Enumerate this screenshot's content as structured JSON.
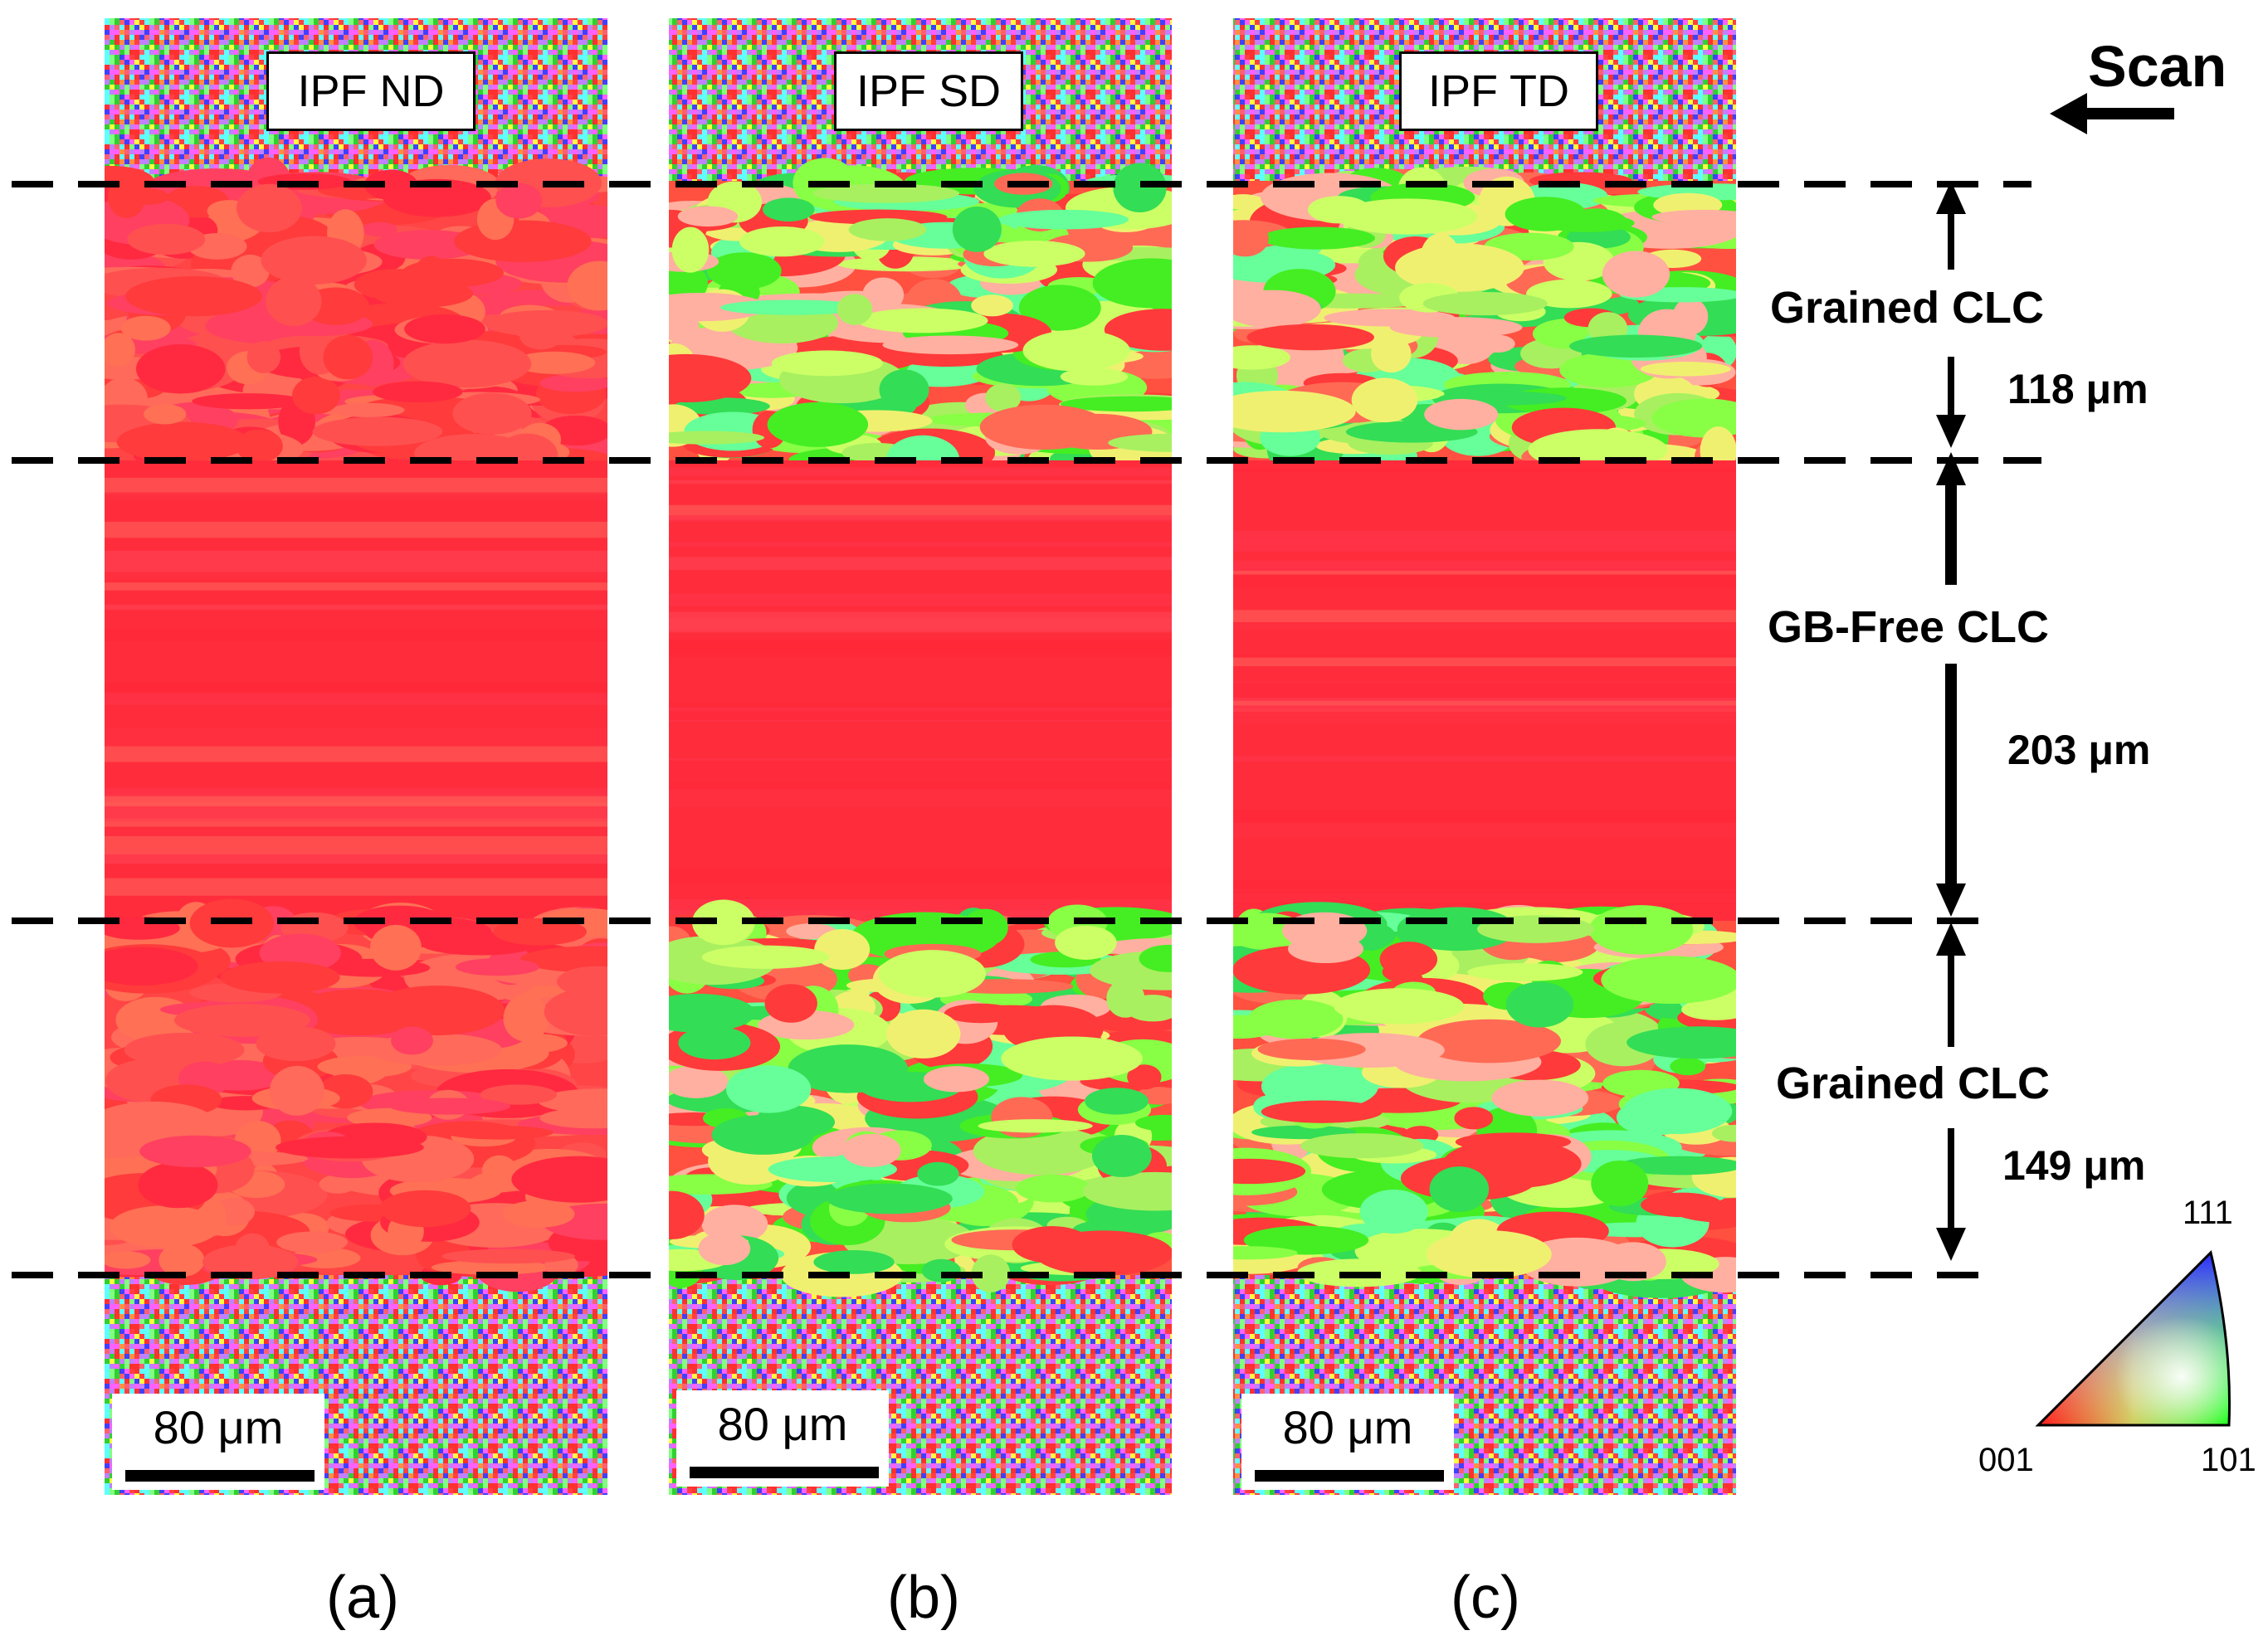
{
  "panels": [
    {
      "id": "a",
      "ipf_label": "IPF ND",
      "scale_label": "80 μm",
      "caption": "(a)",
      "map": "nd"
    },
    {
      "id": "b",
      "ipf_label": "IPF SD",
      "scale_label": "80 μm",
      "caption": "(b)",
      "map": "sd"
    },
    {
      "id": "c",
      "ipf_label": "IPF TD",
      "scale_label": "80 μm",
      "caption": "(c)",
      "map": "td"
    }
  ],
  "annotations": {
    "scan_label": "Scan",
    "regions": [
      {
        "name": "Grained CLC",
        "thickness": "118 μm"
      },
      {
        "name": "GB-Free CLC",
        "thickness": "203 μm"
      },
      {
        "name": "Grained CLC",
        "thickness": "149 μm"
      }
    ]
  },
  "ipf_key": {
    "corner_001": "001",
    "corner_101": "101",
    "corner_111": "111"
  },
  "colors": {
    "red_001": "#ff2a3a",
    "green_101": "#44ff22",
    "blue_111": "#3333ff",
    "dash": "#000000"
  }
}
